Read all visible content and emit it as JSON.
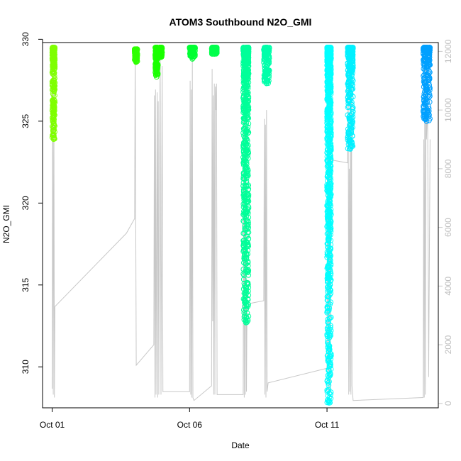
{
  "chart_data": {
    "type": "scatter",
    "title": "ATOM3 Southbound N2O_GMI",
    "xlabel": "Date",
    "ylabel": "N2O_GMI",
    "x_ticks": [
      {
        "day": 1,
        "label": "Oct 01"
      },
      {
        "day": 6,
        "label": "Oct 06"
      },
      {
        "day": 11,
        "label": "Oct 11"
      }
    ],
    "y_ticks": [
      310,
      315,
      320,
      325,
      330
    ],
    "y_right_ticks": [
      0,
      2000,
      4000,
      6000,
      8000,
      10000,
      12000
    ],
    "xlim": [
      0.65,
      15.05
    ],
    "ylim": [
      307.5,
      329.8
    ],
    "y_right_lim": [
      -150,
      12300
    ],
    "grid": false,
    "series": [
      {
        "day_start": 1.0,
        "day_end": 1.1,
        "y_min": 323.9,
        "y_max": 329.5,
        "color": "#7FFF00"
      },
      {
        "day_start": 4.0,
        "day_end": 4.1,
        "y_min": 328.6,
        "y_max": 329.4,
        "color": "#2EFF00"
      },
      {
        "day_start": 4.75,
        "day_end": 4.85,
        "y_min": 327.7,
        "y_max": 329.5,
        "color": "#1AFF00"
      },
      {
        "day_start": 4.9,
        "day_end": 5.0,
        "y_min": 328.9,
        "y_max": 329.5,
        "color": "#1AFF00"
      },
      {
        "day_start": 6.0,
        "day_end": 6.2,
        "y_min": 328.8,
        "y_max": 329.5,
        "color": "#00FF33"
      },
      {
        "day_start": 6.8,
        "day_end": 7.0,
        "y_min": 329.1,
        "y_max": 329.5,
        "color": "#00FF4C"
      },
      {
        "day_start": 7.95,
        "day_end": 8.15,
        "y_min": 312.7,
        "y_max": 329.5,
        "color": "#00FF99"
      },
      {
        "day_start": 8.7,
        "day_end": 8.9,
        "y_min": 327.3,
        "y_max": 329.5,
        "color": "#00FFAA"
      },
      {
        "day_start": 11.0,
        "day_end": 11.15,
        "y_min": 307.8,
        "y_max": 329.5,
        "color": "#00FFFF"
      },
      {
        "day_start": 11.75,
        "day_end": 11.95,
        "y_min": 323.3,
        "y_max": 329.5,
        "color": "#00F0FF"
      },
      {
        "day_start": 14.5,
        "day_end": 14.75,
        "y_min": 325.0,
        "y_max": 329.5,
        "color": "#00A0FF"
      }
    ]
  }
}
